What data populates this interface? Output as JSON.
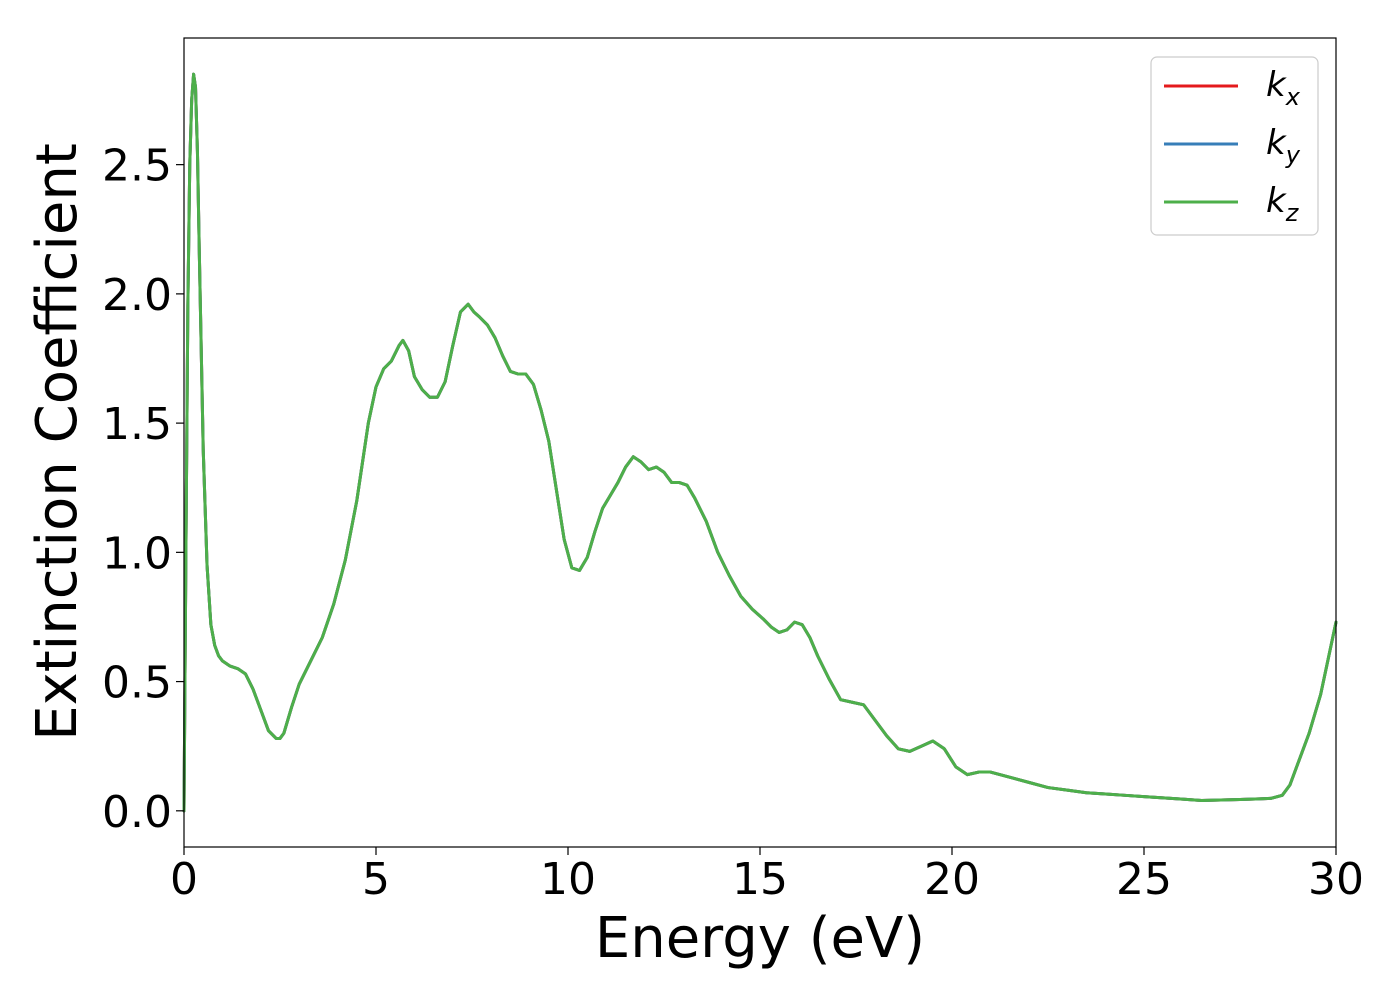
{
  "chart_data": {
    "type": "line",
    "xlabel": "Energy (eV)",
    "ylabel": "Extinction Coefficient",
    "xlim": [
      0,
      30
    ],
    "ylim": [
      -0.14,
      2.99
    ],
    "xticks": [
      0,
      5,
      10,
      15,
      20,
      25,
      30
    ],
    "xtick_labels": [
      "0",
      "5",
      "10",
      "15",
      "20",
      "25",
      "30"
    ],
    "yticks": [
      0.0,
      0.5,
      1.0,
      1.5,
      2.0,
      2.5
    ],
    "ytick_labels": [
      "0.0",
      "0.5",
      "1.0",
      "1.5",
      "2.0",
      "2.5"
    ],
    "grid": false,
    "legend_position": "top-right",
    "x": [
      0,
      0.05,
      0.1,
      0.15,
      0.2,
      0.25,
      0.3,
      0.35,
      0.4,
      0.5,
      0.6,
      0.7,
      0.8,
      0.9,
      1.0,
      1.2,
      1.4,
      1.6,
      1.8,
      2.0,
      2.2,
      2.4,
      2.5,
      2.6,
      2.8,
      3.0,
      3.3,
      3.6,
      3.9,
      4.2,
      4.5,
      4.8,
      5.0,
      5.2,
      5.4,
      5.6,
      5.7,
      5.85,
      6.0,
      6.2,
      6.4,
      6.6,
      6.8,
      7.0,
      7.2,
      7.4,
      7.55,
      7.7,
      7.9,
      8.1,
      8.3,
      8.5,
      8.7,
      8.9,
      9.1,
      9.3,
      9.5,
      9.7,
      9.9,
      10.1,
      10.3,
      10.5,
      10.7,
      10.9,
      11.1,
      11.3,
      11.5,
      11.7,
      11.9,
      12.1,
      12.3,
      12.5,
      12.7,
      12.9,
      13.1,
      13.3,
      13.6,
      13.9,
      14.2,
      14.5,
      14.8,
      15.1,
      15.3,
      15.5,
      15.7,
      15.9,
      16.1,
      16.3,
      16.5,
      16.8,
      17.1,
      17.4,
      17.7,
      18.0,
      18.3,
      18.6,
      18.9,
      19.2,
      19.5,
      19.8,
      20.1,
      20.4,
      20.7,
      21.0,
      21.5,
      22.0,
      22.5,
      23.0,
      23.5,
      24.0,
      24.5,
      25.0,
      25.5,
      26.0,
      26.5,
      27.0,
      27.5,
      28.0,
      28.3,
      28.6,
      28.8,
      29.0,
      29.3,
      29.6,
      30.0
    ],
    "series": [
      {
        "name": "k_x",
        "color": "#e41a1c",
        "values": [
          0.0,
          1.0,
          1.95,
          2.5,
          2.75,
          2.85,
          2.8,
          2.55,
          2.15,
          1.4,
          0.95,
          0.72,
          0.64,
          0.6,
          0.58,
          0.56,
          0.55,
          0.53,
          0.47,
          0.39,
          0.31,
          0.28,
          0.28,
          0.3,
          0.4,
          0.49,
          0.58,
          0.67,
          0.8,
          0.97,
          1.2,
          1.5,
          1.64,
          1.71,
          1.74,
          1.8,
          1.82,
          1.78,
          1.68,
          1.63,
          1.6,
          1.6,
          1.66,
          1.8,
          1.93,
          1.96,
          1.93,
          1.91,
          1.88,
          1.83,
          1.76,
          1.7,
          1.69,
          1.69,
          1.65,
          1.55,
          1.43,
          1.24,
          1.05,
          0.94,
          0.93,
          0.98,
          1.08,
          1.17,
          1.22,
          1.27,
          1.33,
          1.37,
          1.35,
          1.32,
          1.33,
          1.31,
          1.27,
          1.27,
          1.26,
          1.21,
          1.12,
          1.0,
          0.91,
          0.83,
          0.78,
          0.74,
          0.71,
          0.69,
          0.7,
          0.73,
          0.72,
          0.67,
          0.6,
          0.51,
          0.43,
          0.42,
          0.41,
          0.35,
          0.29,
          0.24,
          0.23,
          0.25,
          0.27,
          0.24,
          0.17,
          0.14,
          0.15,
          0.15,
          0.13,
          0.11,
          0.09,
          0.08,
          0.07,
          0.065,
          0.06,
          0.055,
          0.05,
          0.045,
          0.04,
          0.042,
          0.044,
          0.046,
          0.048,
          0.06,
          0.1,
          0.18,
          0.3,
          0.45,
          0.73
        ]
      },
      {
        "name": "k_y",
        "color": "#377eb8",
        "values": [
          0.0,
          1.0,
          1.95,
          2.5,
          2.75,
          2.85,
          2.8,
          2.55,
          2.15,
          1.4,
          0.95,
          0.72,
          0.64,
          0.6,
          0.58,
          0.56,
          0.55,
          0.53,
          0.47,
          0.39,
          0.31,
          0.28,
          0.28,
          0.3,
          0.4,
          0.49,
          0.58,
          0.67,
          0.8,
          0.97,
          1.2,
          1.5,
          1.64,
          1.71,
          1.74,
          1.8,
          1.82,
          1.78,
          1.68,
          1.63,
          1.6,
          1.6,
          1.66,
          1.8,
          1.93,
          1.96,
          1.93,
          1.91,
          1.88,
          1.83,
          1.76,
          1.7,
          1.69,
          1.69,
          1.65,
          1.55,
          1.43,
          1.24,
          1.05,
          0.94,
          0.93,
          0.98,
          1.08,
          1.17,
          1.22,
          1.27,
          1.33,
          1.37,
          1.35,
          1.32,
          1.33,
          1.31,
          1.27,
          1.27,
          1.26,
          1.21,
          1.12,
          1.0,
          0.91,
          0.83,
          0.78,
          0.74,
          0.71,
          0.69,
          0.7,
          0.73,
          0.72,
          0.67,
          0.6,
          0.51,
          0.43,
          0.42,
          0.41,
          0.35,
          0.29,
          0.24,
          0.23,
          0.25,
          0.27,
          0.24,
          0.17,
          0.14,
          0.15,
          0.15,
          0.13,
          0.11,
          0.09,
          0.08,
          0.07,
          0.065,
          0.06,
          0.055,
          0.05,
          0.045,
          0.04,
          0.042,
          0.044,
          0.046,
          0.048,
          0.06,
          0.1,
          0.18,
          0.3,
          0.45,
          0.73
        ]
      },
      {
        "name": "k_z",
        "color": "#4daf4a",
        "values": [
          0.0,
          1.0,
          1.95,
          2.5,
          2.75,
          2.85,
          2.8,
          2.55,
          2.15,
          1.4,
          0.95,
          0.72,
          0.64,
          0.6,
          0.58,
          0.56,
          0.55,
          0.53,
          0.47,
          0.39,
          0.31,
          0.28,
          0.28,
          0.3,
          0.4,
          0.49,
          0.58,
          0.67,
          0.8,
          0.97,
          1.2,
          1.5,
          1.64,
          1.71,
          1.74,
          1.8,
          1.82,
          1.78,
          1.68,
          1.63,
          1.6,
          1.6,
          1.66,
          1.8,
          1.93,
          1.96,
          1.93,
          1.91,
          1.88,
          1.83,
          1.76,
          1.7,
          1.69,
          1.69,
          1.65,
          1.55,
          1.43,
          1.24,
          1.05,
          0.94,
          0.93,
          0.98,
          1.08,
          1.17,
          1.22,
          1.27,
          1.33,
          1.37,
          1.35,
          1.32,
          1.33,
          1.31,
          1.27,
          1.27,
          1.26,
          1.21,
          1.12,
          1.0,
          0.91,
          0.83,
          0.78,
          0.74,
          0.71,
          0.69,
          0.7,
          0.73,
          0.72,
          0.67,
          0.6,
          0.51,
          0.43,
          0.42,
          0.41,
          0.35,
          0.29,
          0.24,
          0.23,
          0.25,
          0.27,
          0.24,
          0.17,
          0.14,
          0.15,
          0.15,
          0.13,
          0.11,
          0.09,
          0.08,
          0.07,
          0.065,
          0.06,
          0.055,
          0.05,
          0.045,
          0.04,
          0.042,
          0.044,
          0.046,
          0.048,
          0.06,
          0.1,
          0.18,
          0.3,
          0.45,
          0.73
        ]
      }
    ],
    "legend": [
      {
        "base": "k",
        "sub": "x",
        "color": "#e41a1c"
      },
      {
        "base": "k",
        "sub": "y",
        "color": "#377eb8"
      },
      {
        "base": "k",
        "sub": "z",
        "color": "#4daf4a"
      }
    ]
  }
}
